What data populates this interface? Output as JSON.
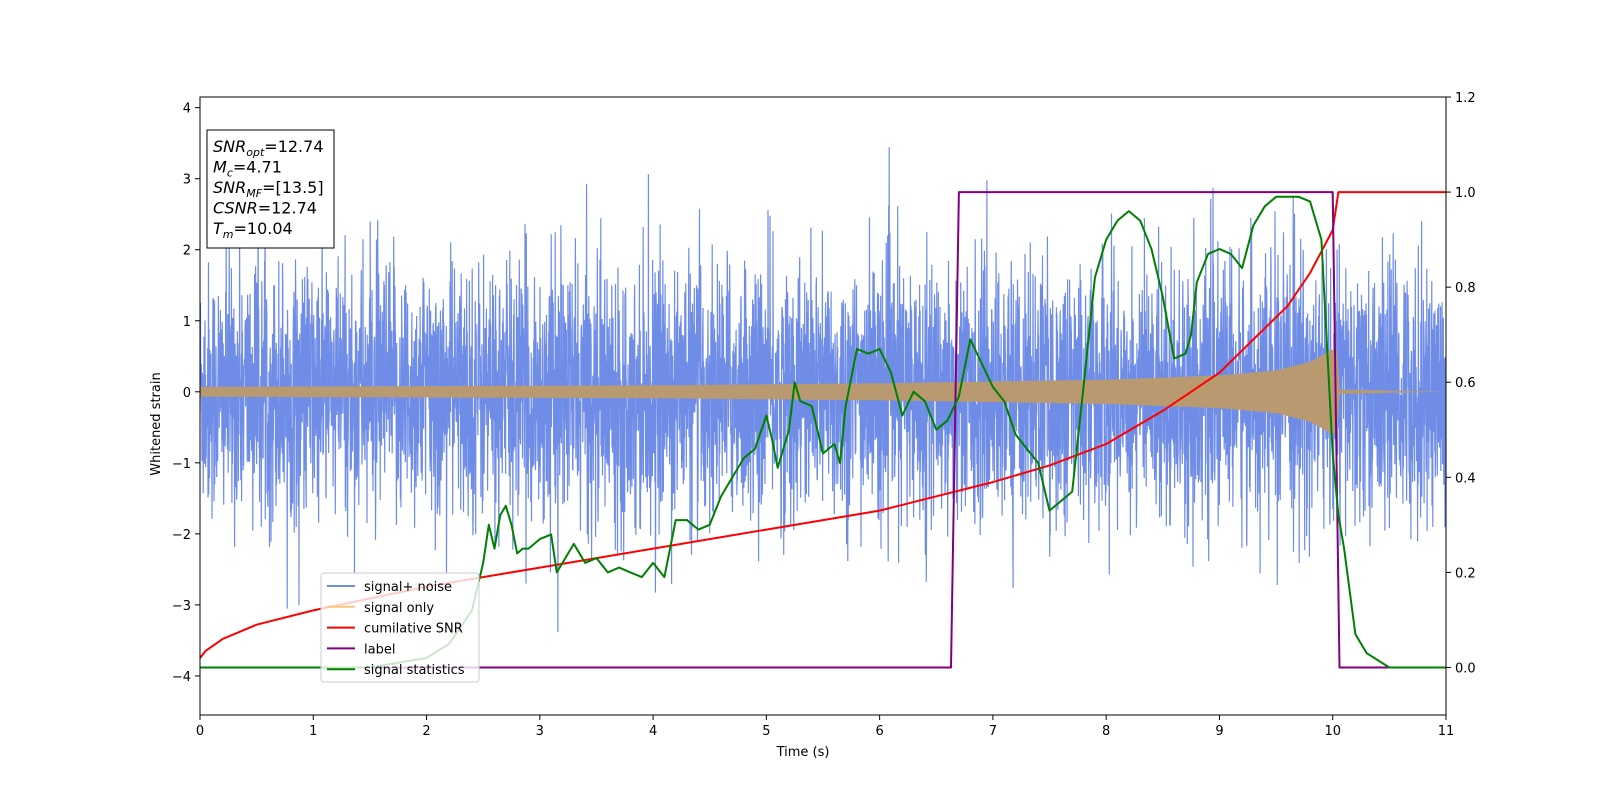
{
  "chart_data": {
    "type": "line",
    "xlabel": "Time (s)",
    "ylabel": "Whitened strain",
    "xlim": [
      0,
      11
    ],
    "ylim": [
      -4.55,
      4.15
    ],
    "y2lim": [
      -0.1,
      1.2
    ],
    "x_ticks": [
      "0",
      "1",
      "2",
      "3",
      "4",
      "5",
      "6",
      "7",
      "8",
      "9",
      "10",
      "11"
    ],
    "y_ticks": [
      "−4",
      "−3",
      "−2",
      "−1",
      "0",
      "1",
      "2",
      "3",
      "4"
    ],
    "y2_ticks": [
      "0.0",
      "0.2",
      "0.4",
      "0.6",
      "0.8",
      "1.0",
      "1.2"
    ],
    "info_box": [
      {
        "base": "SNR",
        "sub": "opt",
        "value": "=12.74"
      },
      {
        "base": "M",
        "sub": "c",
        "value": "=4.71"
      },
      {
        "base": "SNR",
        "sub": "MF",
        "value": "=[13.5]"
      },
      {
        "base": "CSNR",
        "sub": "",
        "value": "=12.74"
      },
      {
        "base": "T",
        "sub": "m",
        "value": "=10.04"
      }
    ],
    "legend": {
      "placement": "lower-left",
      "entries": [
        {
          "label": "signal+ noise",
          "color": "#6f8de6"
        },
        {
          "label": "signal only",
          "color": "#f7c77f"
        },
        {
          "label": "cumilative SNR",
          "color": "#ff0000"
        },
        {
          "label": "label",
          "color": "#800080"
        },
        {
          "label": "signal statistics",
          "color": "#008000"
        }
      ]
    },
    "series": [
      {
        "name": "signal+ noise",
        "axis": "left",
        "color": "#6f8de6",
        "kind": "noise",
        "std": 0.9,
        "x_range": [
          0,
          11
        ]
      },
      {
        "name": "signal only",
        "axis": "left",
        "color": "#b99a70",
        "kind": "chirp_envelope",
        "merger_time": 10.04,
        "envelope": {
          "x": [
            0,
            2,
            4,
            6,
            8,
            9,
            9.5,
            9.8,
            10.0,
            10.04,
            10.05,
            11
          ],
          "y": [
            0.07,
            0.08,
            0.09,
            0.12,
            0.17,
            0.23,
            0.3,
            0.42,
            0.6,
            0.6,
            0.03,
            0.0
          ]
        }
      },
      {
        "name": "cumilative SNR",
        "axis": "right",
        "color": "#ff0000",
        "x": [
          0,
          0.05,
          0.2,
          0.5,
          1,
          2,
          3,
          4,
          5,
          6,
          6.5,
          7,
          7.5,
          8,
          8.5,
          9,
          9.3,
          9.6,
          9.8,
          10.0,
          10.05,
          11
        ],
        "y": [
          0.02,
          0.035,
          0.06,
          0.09,
          0.12,
          0.17,
          0.21,
          0.25,
          0.29,
          0.33,
          0.36,
          0.39,
          0.425,
          0.47,
          0.54,
          0.62,
          0.69,
          0.76,
          0.83,
          0.92,
          1.0,
          1.0
        ]
      },
      {
        "name": "label",
        "axis": "right",
        "color": "#800080",
        "x": [
          0,
          6.63,
          6.7,
          10.0,
          10.06,
          11
        ],
        "y": [
          0,
          0,
          1,
          1,
          0,
          0
        ]
      },
      {
        "name": "signal statistics",
        "axis": "right",
        "color": "#008000",
        "x": [
          0,
          1.5,
          2.0,
          2.2,
          2.4,
          2.5,
          2.55,
          2.6,
          2.65,
          2.7,
          2.75,
          2.8,
          2.85,
          2.9,
          3.0,
          3.1,
          3.15,
          3.2,
          3.3,
          3.4,
          3.5,
          3.6,
          3.7,
          3.8,
          3.9,
          4.0,
          4.1,
          4.2,
          4.3,
          4.4,
          4.5,
          4.6,
          4.7,
          4.8,
          4.9,
          5.0,
          5.05,
          5.1,
          5.2,
          5.25,
          5.3,
          5.4,
          5.5,
          5.6,
          5.65,
          5.7,
          5.8,
          5.9,
          6.0,
          6.1,
          6.2,
          6.3,
          6.4,
          6.5,
          6.6,
          6.7,
          6.8,
          6.9,
          7.0,
          7.1,
          7.2,
          7.3,
          7.4,
          7.5,
          7.6,
          7.7,
          7.8,
          7.9,
          8.0,
          8.1,
          8.2,
          8.3,
          8.4,
          8.5,
          8.6,
          8.7,
          8.75,
          8.8,
          8.9,
          9.0,
          9.1,
          9.2,
          9.3,
          9.4,
          9.5,
          9.6,
          9.7,
          9.8,
          9.9,
          10.0,
          10.05,
          10.1,
          10.2,
          10.3,
          10.5,
          11.0
        ],
        "y": [
          0,
          0.0,
          0.02,
          0.05,
          0.12,
          0.22,
          0.3,
          0.25,
          0.32,
          0.34,
          0.3,
          0.24,
          0.25,
          0.25,
          0.27,
          0.28,
          0.2,
          0.22,
          0.26,
          0.22,
          0.23,
          0.2,
          0.21,
          0.2,
          0.19,
          0.22,
          0.19,
          0.31,
          0.31,
          0.29,
          0.3,
          0.36,
          0.4,
          0.44,
          0.46,
          0.53,
          0.48,
          0.42,
          0.5,
          0.6,
          0.56,
          0.55,
          0.45,
          0.47,
          0.43,
          0.55,
          0.67,
          0.66,
          0.67,
          0.62,
          0.53,
          0.58,
          0.56,
          0.5,
          0.52,
          0.57,
          0.69,
          0.64,
          0.59,
          0.56,
          0.49,
          0.46,
          0.43,
          0.33,
          0.35,
          0.37,
          0.59,
          0.82,
          0.9,
          0.94,
          0.96,
          0.94,
          0.88,
          0.78,
          0.65,
          0.66,
          0.7,
          0.81,
          0.87,
          0.88,
          0.87,
          0.84,
          0.93,
          0.97,
          0.99,
          0.99,
          0.99,
          0.98,
          0.9,
          0.45,
          0.32,
          0.25,
          0.07,
          0.03,
          0.0,
          0.0
        ]
      }
    ]
  }
}
